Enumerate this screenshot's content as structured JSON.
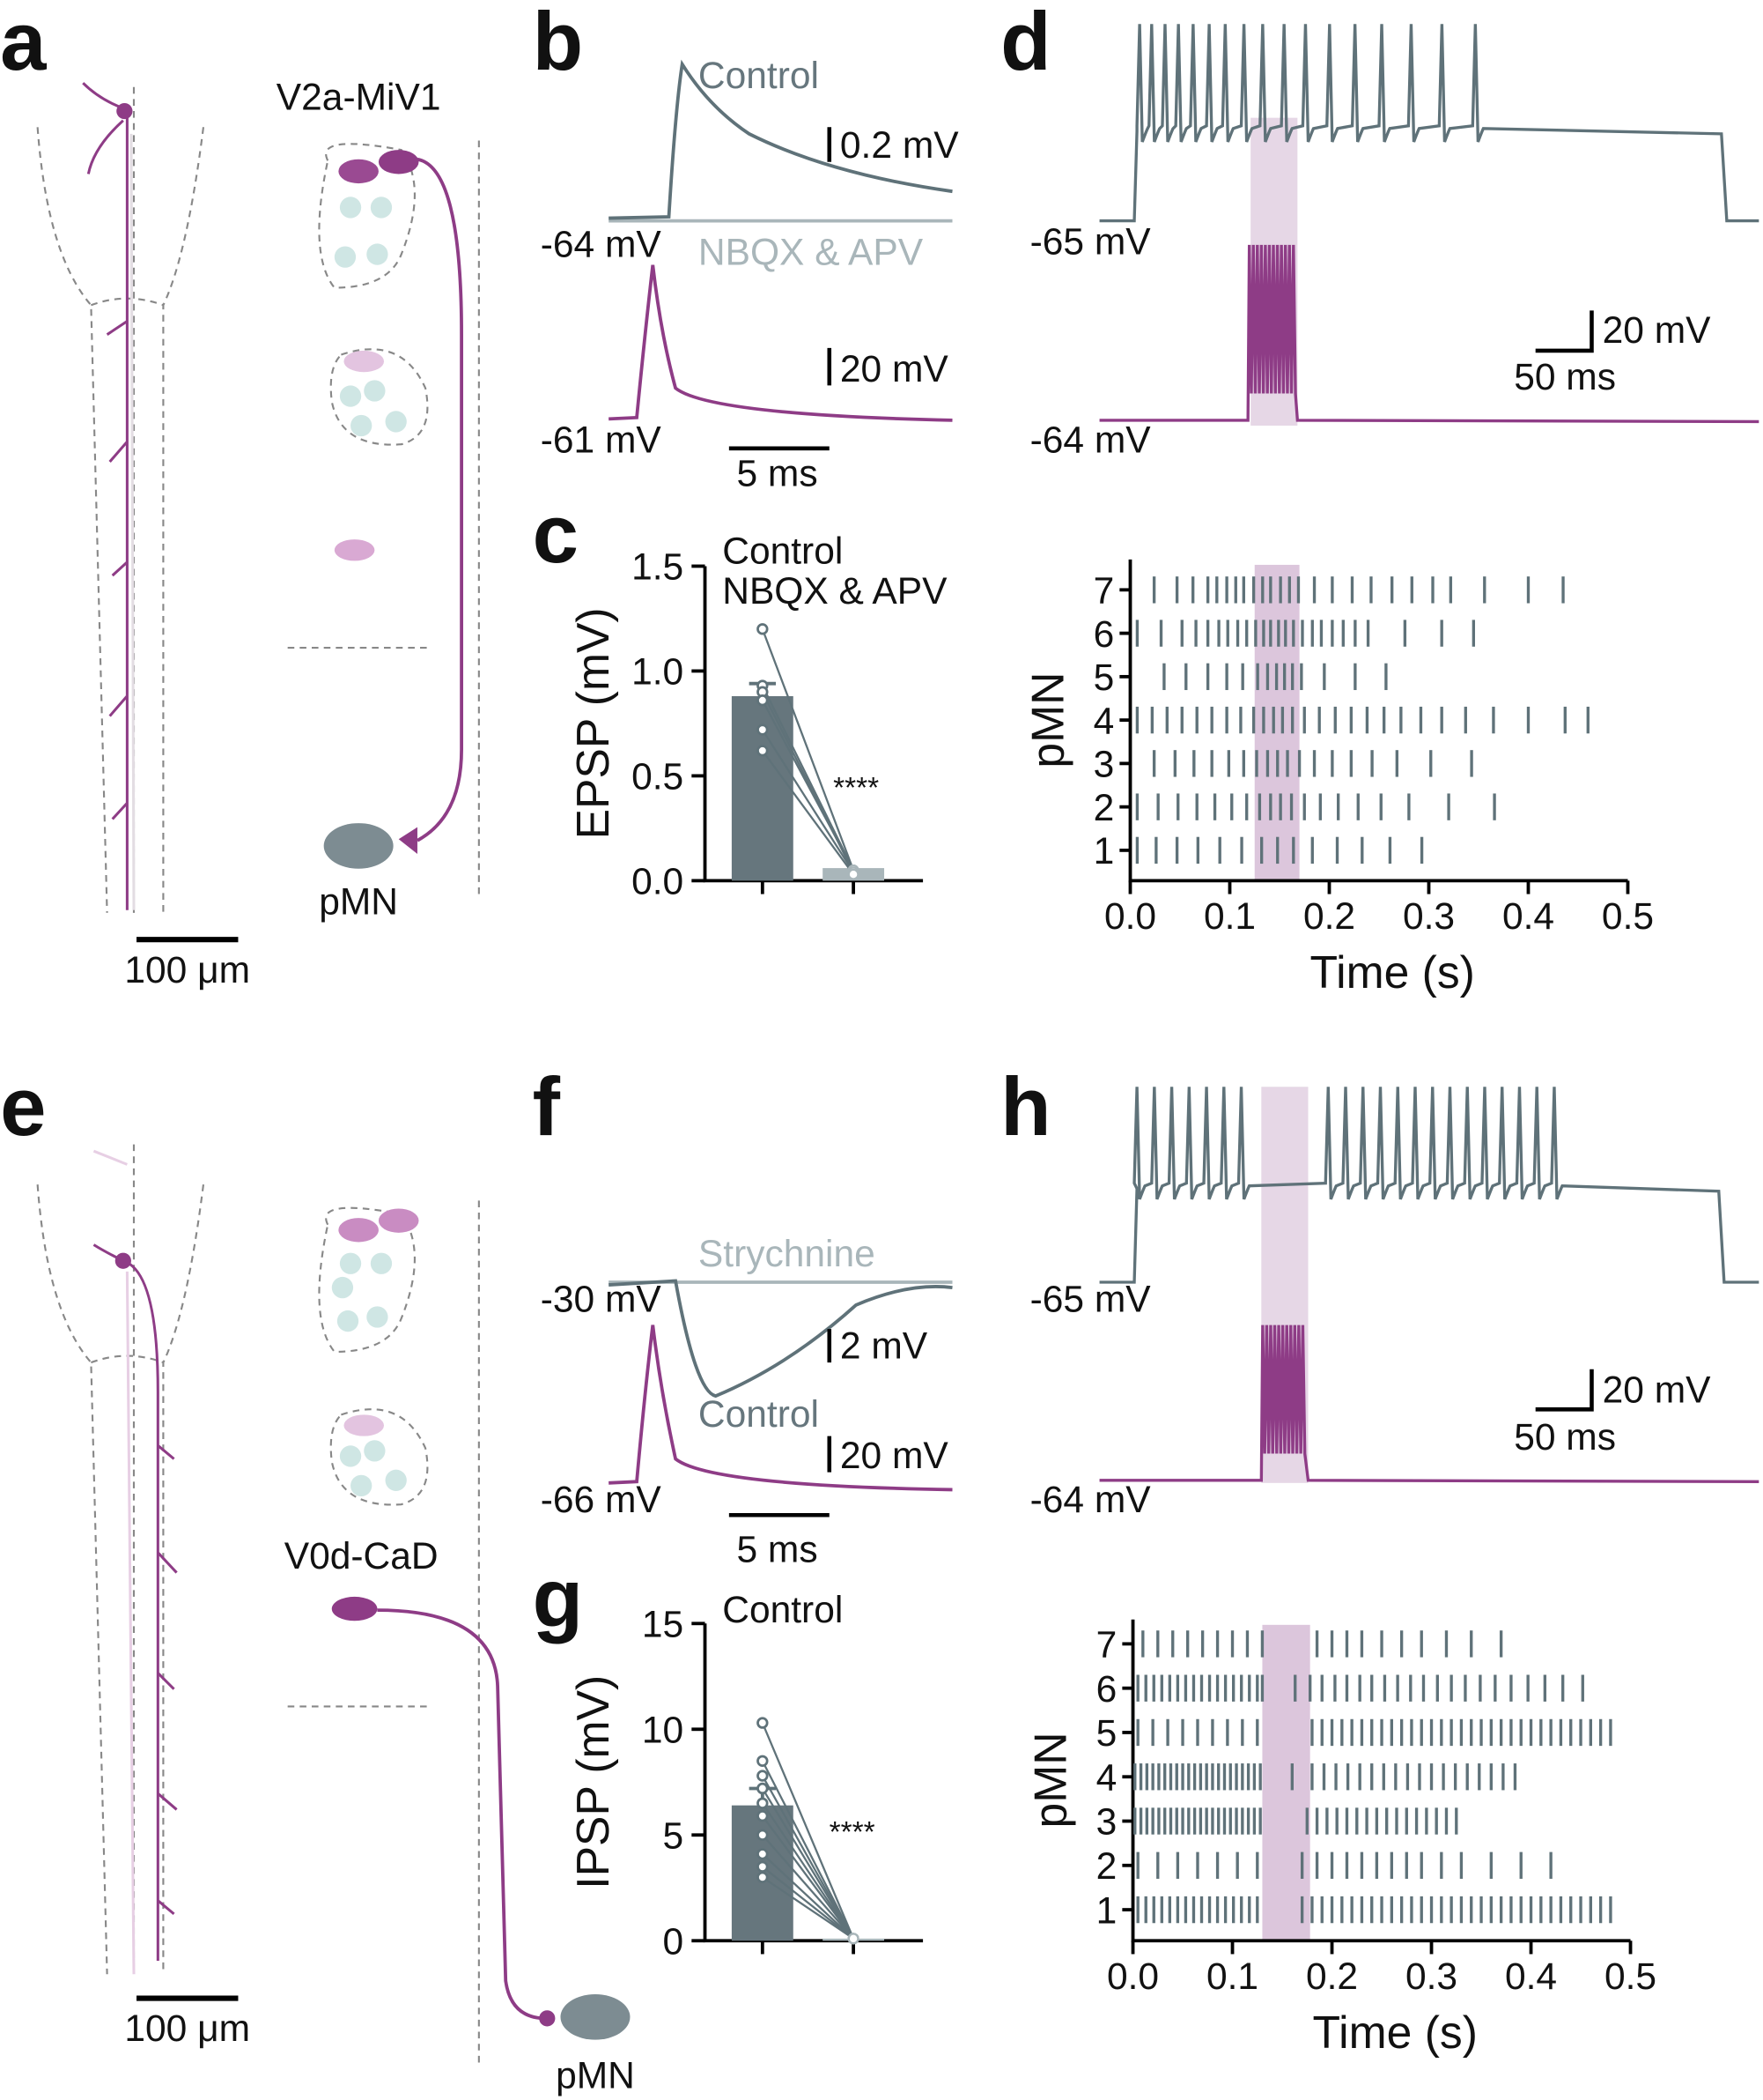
{
  "panels": {
    "a": {
      "label": "a",
      "cell": "V2a-MiV1",
      "target": "pMN",
      "scale": "100 μm"
    },
    "b": {
      "label": "b",
      "legend": [
        "Control",
        "NBQX & APV"
      ],
      "scales": [
        "0.2 mV",
        "20 mV",
        "5 ms"
      ],
      "potentials": [
        "-64 mV",
        "-61 mV"
      ]
    },
    "c": {
      "label": "c"
    },
    "d": {
      "label": "d",
      "potentials": [
        "-65 mV",
        "-64 mV"
      ],
      "scales": [
        "20 mV",
        "50 ms"
      ]
    },
    "e": {
      "label": "e",
      "cell": "V0d-CaD",
      "target": "pMN",
      "scale": "100 μm"
    },
    "f": {
      "label": "f",
      "legend": [
        "Strychnine",
        "Control"
      ],
      "scales": [
        "2 mV",
        "20 mV",
        "5 ms"
      ],
      "potentials": [
        "-30 mV",
        "-66 mV"
      ]
    },
    "g": {
      "label": "g"
    },
    "h": {
      "label": "h",
      "potentials": [
        "-65 mV",
        "-64 mV"
      ],
      "scales": [
        "20 mV",
        "50 ms"
      ]
    }
  },
  "chart_data": [
    {
      "type": "bar",
      "ylabel": "EPSP (mV)",
      "ylim": [
        0,
        1.5
      ],
      "yticks": [
        {
          "value": 0,
          "label": "0.0"
        },
        {
          "value": 0.5,
          "label": "0.5"
        },
        {
          "value": 1,
          "label": "1.0"
        },
        {
          "value": 1.5,
          "label": "1.5"
        }
      ],
      "annotation": "****",
      "series": [
        {
          "name": "Control",
          "color": "#66767d",
          "values": [
            0.88
          ],
          "error": [
            0.06
          ],
          "points": [
            1.2,
            0.93,
            0.9,
            0.86,
            0.72,
            0.62
          ]
        },
        {
          "name": "NBQX & APV",
          "color": "#a9b6ba",
          "values": [
            0.06
          ],
          "points": [
            0.05,
            0.05,
            0.04,
            0.05,
            0.04,
            0.03
          ]
        }
      ]
    },
    {
      "type": "raster",
      "xlabel": "Time (s)",
      "ylabel": "pMN",
      "xlim": [
        0,
        0.5
      ],
      "xticks": [
        {
          "value": 0,
          "label": "0.0"
        },
        {
          "value": 0.1,
          "label": "0.1"
        },
        {
          "value": 0.2,
          "label": "0.2"
        },
        {
          "value": 0.3,
          "label": "0.3"
        },
        {
          "value": 0.4,
          "label": "0.4"
        },
        {
          "value": 0.5,
          "label": "0.5"
        }
      ],
      "ylim": [
        0.3,
        7.7
      ],
      "yticks": [
        1,
        2,
        3,
        4,
        5,
        6,
        7
      ],
      "color": "#5f7279",
      "highlight": [
        0.125,
        0.17
      ],
      "highlight_color": "#dcc6dc",
      "spikes": [
        [
          0.007,
          0.026,
          0.047,
          0.068,
          0.09,
          0.112,
          0.132,
          0.148,
          0.164,
          0.183,
          0.208,
          0.233,
          0.261,
          0.293
        ],
        [
          0.007,
          0.028,
          0.048,
          0.067,
          0.085,
          0.102,
          0.117,
          0.13,
          0.141,
          0.151,
          0.162,
          0.175,
          0.191,
          0.209,
          0.229,
          0.252,
          0.28,
          0.32,
          0.366
        ],
        [
          0.024,
          0.045,
          0.064,
          0.082,
          0.099,
          0.114,
          0.127,
          0.138,
          0.148,
          0.158,
          0.17,
          0.185,
          0.203,
          0.222,
          0.243,
          0.268,
          0.302,
          0.343
        ],
        [
          0.007,
          0.022,
          0.037,
          0.052,
          0.067,
          0.082,
          0.097,
          0.111,
          0.124,
          0.134,
          0.144,
          0.153,
          0.163,
          0.175,
          0.19,
          0.206,
          0.222,
          0.238,
          0.255,
          0.272,
          0.292,
          0.313,
          0.337,
          0.365,
          0.4,
          0.437,
          0.46
        ],
        [
          0.034,
          0.056,
          0.078,
          0.097,
          0.113,
          0.128,
          0.138,
          0.147,
          0.155,
          0.163,
          0.172,
          0.195,
          0.226,
          0.257
        ],
        [
          0.007,
          0.031,
          0.052,
          0.066,
          0.078,
          0.089,
          0.098,
          0.108,
          0.117,
          0.126,
          0.134,
          0.141,
          0.149,
          0.156,
          0.164,
          0.173,
          0.183,
          0.192,
          0.203,
          0.214,
          0.226,
          0.239,
          0.276,
          0.313,
          0.345
        ],
        [
          0.024,
          0.047,
          0.063,
          0.078,
          0.087,
          0.097,
          0.106,
          0.114,
          0.124,
          0.133,
          0.141,
          0.151,
          0.16,
          0.169,
          0.185,
          0.203,
          0.223,
          0.242,
          0.263,
          0.283,
          0.304,
          0.322,
          0.356,
          0.4,
          0.435
        ]
      ]
    },
    {
      "type": "bar",
      "ylabel": "IPSP (mV)",
      "ylim": [
        0,
        15
      ],
      "yticks": [
        0,
        5,
        10,
        15
      ],
      "annotation": "****",
      "series": [
        {
          "name": "Control",
          "color": "#66767d",
          "values": [
            6.4
          ],
          "error": [
            0.8
          ],
          "points": [
            10.3,
            8.5,
            7.8,
            7.2,
            6.5,
            5.9,
            5.0,
            4.1,
            3.5,
            3.0
          ]
        },
        {
          "color": "#a9b6ba",
          "values": [
            0.1
          ],
          "points": [
            0.1,
            0.1,
            0.1,
            0.1,
            0.1,
            0.1,
            0.1,
            0.1,
            0.1,
            0.1
          ]
        }
      ]
    },
    {
      "type": "raster",
      "xlabel": "Time (s)",
      "ylabel": "pMN",
      "xlim": [
        0,
        0.5
      ],
      "xticks": [
        {
          "value": 0,
          "label": "0.0"
        },
        {
          "value": 0.1,
          "label": "0.1"
        },
        {
          "value": 0.2,
          "label": "0.2"
        },
        {
          "value": 0.3,
          "label": "0.3"
        },
        {
          "value": 0.4,
          "label": "0.4"
        },
        {
          "value": 0.5,
          "label": "0.5"
        }
      ],
      "ylim": [
        0.3,
        7.55
      ],
      "yticks": [
        1,
        2,
        3,
        4,
        5,
        6,
        7
      ],
      "color": "#5f7279",
      "highlight": [
        0.13,
        0.178
      ],
      "highlight_color": "#dcc6dc",
      "spikes": [
        [
          0.005,
          0.013,
          0.021,
          0.029,
          0.037,
          0.045,
          0.053,
          0.061,
          0.069,
          0.077,
          0.085,
          0.093,
          0.101,
          0.109,
          0.117,
          0.125,
          0.17,
          0.18,
          0.19,
          0.2,
          0.21,
          0.22,
          0.23,
          0.24,
          0.25,
          0.26,
          0.27,
          0.28,
          0.29,
          0.3,
          0.31,
          0.32,
          0.33,
          0.34,
          0.35,
          0.36,
          0.37,
          0.38,
          0.39,
          0.4,
          0.41,
          0.42,
          0.43,
          0.44,
          0.45,
          0.46,
          0.47,
          0.48
        ],
        [
          0.005,
          0.025,
          0.045,
          0.065,
          0.085,
          0.105,
          0.125,
          0.17,
          0.185,
          0.2,
          0.215,
          0.23,
          0.245,
          0.26,
          0.275,
          0.29,
          0.31,
          0.33,
          0.36,
          0.39,
          0.42
        ],
        [
          0.002,
          0.008,
          0.014,
          0.02,
          0.026,
          0.032,
          0.038,
          0.044,
          0.05,
          0.056,
          0.062,
          0.068,
          0.074,
          0.08,
          0.086,
          0.092,
          0.098,
          0.104,
          0.11,
          0.116,
          0.122,
          0.128,
          0.175,
          0.185,
          0.195,
          0.205,
          0.215,
          0.225,
          0.235,
          0.245,
          0.255,
          0.265,
          0.275,
          0.285,
          0.295,
          0.305,
          0.315,
          0.325
        ],
        [
          0.002,
          0.008,
          0.014,
          0.02,
          0.026,
          0.032,
          0.038,
          0.044,
          0.05,
          0.056,
          0.062,
          0.068,
          0.074,
          0.08,
          0.086,
          0.092,
          0.098,
          0.104,
          0.11,
          0.116,
          0.122,
          0.128,
          0.16,
          0.18,
          0.192,
          0.204,
          0.216,
          0.228,
          0.24,
          0.252,
          0.264,
          0.276,
          0.288,
          0.3,
          0.312,
          0.324,
          0.336,
          0.348,
          0.36,
          0.372,
          0.384
        ],
        [
          0.005,
          0.02,
          0.035,
          0.05,
          0.065,
          0.08,
          0.095,
          0.11,
          0.125,
          0.18,
          0.19,
          0.2,
          0.21,
          0.22,
          0.23,
          0.24,
          0.25,
          0.26,
          0.27,
          0.28,
          0.29,
          0.3,
          0.31,
          0.32,
          0.33,
          0.34,
          0.35,
          0.36,
          0.37,
          0.38,
          0.39,
          0.4,
          0.41,
          0.42,
          0.43,
          0.44,
          0.45,
          0.46,
          0.47,
          0.48
        ],
        [
          0.005,
          0.013,
          0.021,
          0.029,
          0.037,
          0.045,
          0.053,
          0.061,
          0.069,
          0.077,
          0.085,
          0.093,
          0.101,
          0.109,
          0.117,
          0.125,
          0.13,
          0.163,
          0.178,
          0.19,
          0.203,
          0.215,
          0.228,
          0.24,
          0.253,
          0.266,
          0.279,
          0.292,
          0.306,
          0.32,
          0.334,
          0.349,
          0.364,
          0.38,
          0.397,
          0.414,
          0.432,
          0.452
        ],
        [
          0.01,
          0.025,
          0.04,
          0.055,
          0.07,
          0.085,
          0.1,
          0.115,
          0.13,
          0.185,
          0.2,
          0.215,
          0.23,
          0.25,
          0.27,
          0.29,
          0.315,
          0.34,
          0.37
        ]
      ]
    }
  ]
}
